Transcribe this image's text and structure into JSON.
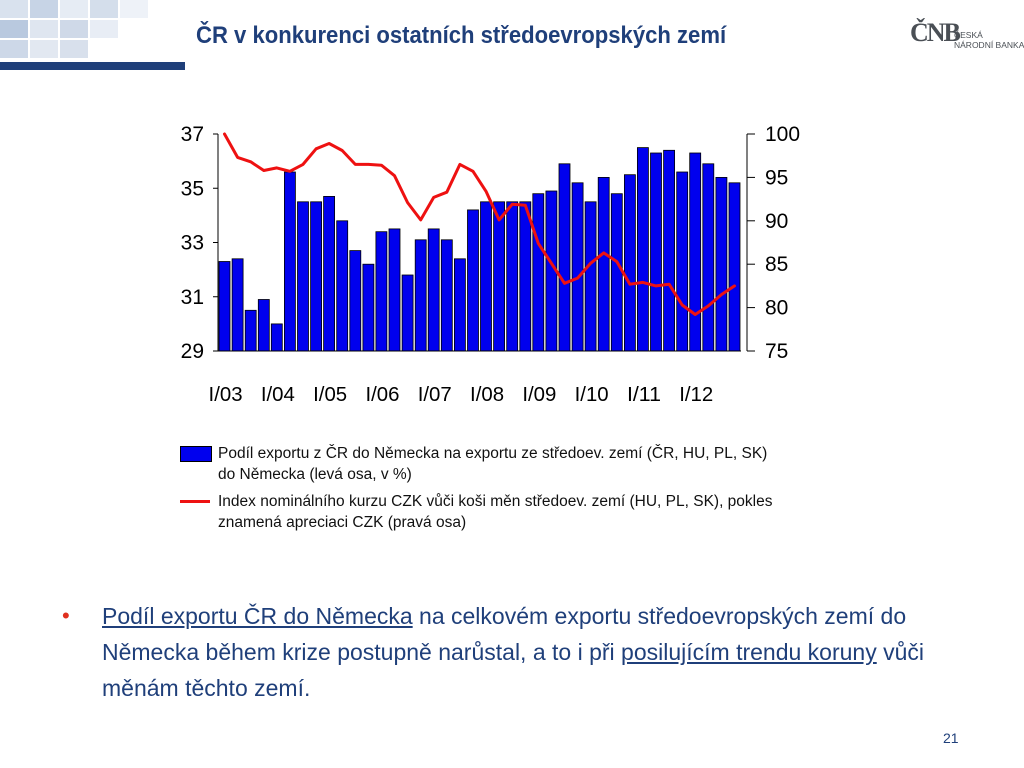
{
  "slide": {
    "title": "ČR v konkurenci ostatních středoevropských zemí",
    "logo": {
      "main": "ČNB",
      "line1": "ČESKÁ",
      "line2": "NÁRODNÍ BANKA"
    },
    "page_number": "21"
  },
  "bullet": {
    "link1": "Podíl exportu ČR do Německa",
    "text1": " na celkovém exportu středoevropských zemí do Německa během krize postupně narůstal, a to i při ",
    "link2": "posilujícím trendu koruny",
    "text2": " vůči měnám těchto zemí."
  },
  "legend": [
    {
      "label": "Podíl exportu z ČR do Německa na exportu ze středoev. zemí (ČR, HU, PL, SK) do Německa (levá osa, v %)"
    },
    {
      "label": "Index nominálního kurzu CZK vůči koši měn středoev. zemí (HU, PL, SK), pokles znamená apreciaci CZK (pravá osa)"
    }
  ],
  "colors": {
    "bars": "#0000ee",
    "line": "#ee1111",
    "title": "#1f3f7a",
    "bullet_dot": "#e0301e"
  },
  "chart_data": {
    "type": "bar",
    "x_tick_labels": [
      "I/03",
      "I/04",
      "I/05",
      "I/06",
      "I/07",
      "I/08",
      "I/09",
      "I/10",
      "I/11",
      "I/12"
    ],
    "x_tick_every": 4,
    "y_left": {
      "range": [
        29,
        37
      ],
      "ticks": [
        "29",
        "31",
        "33",
        "35",
        "37"
      ]
    },
    "y_right": {
      "range": [
        75,
        100
      ],
      "ticks": [
        "75",
        "80",
        "85",
        "90",
        "95",
        "100"
      ]
    },
    "grid": false,
    "legend_position": "bottom",
    "series": [
      {
        "axis": "left",
        "type": "bar",
        "values": [
          32.3,
          32.4,
          30.5,
          30.9,
          30.0,
          35.6,
          34.5,
          34.5,
          34.7,
          33.8,
          32.7,
          32.2,
          33.4,
          33.5,
          31.8,
          33.1,
          33.5,
          33.1,
          32.4,
          34.2,
          34.5,
          34.5,
          34.5,
          34.5,
          34.8,
          34.9,
          35.9,
          35.2,
          34.5,
          35.4,
          34.8,
          35.5,
          36.5,
          36.3,
          36.4,
          35.6,
          36.3,
          35.9,
          35.4,
          35.2
        ]
      },
      {
        "axis": "right",
        "type": "line",
        "values": [
          100.0,
          97.3,
          96.8,
          95.8,
          96.1,
          95.7,
          96.5,
          98.3,
          98.9,
          98.1,
          96.5,
          96.5,
          96.4,
          95.2,
          92.1,
          90.1,
          92.7,
          93.3,
          96.5,
          95.7,
          93.4,
          90.1,
          91.9,
          91.8,
          87.4,
          85.1,
          82.8,
          83.4,
          85.1,
          86.3,
          85.3,
          82.7,
          82.9,
          82.5,
          82.7,
          80.3,
          79.2,
          80.2,
          81.5,
          82.5
        ]
      }
    ]
  }
}
